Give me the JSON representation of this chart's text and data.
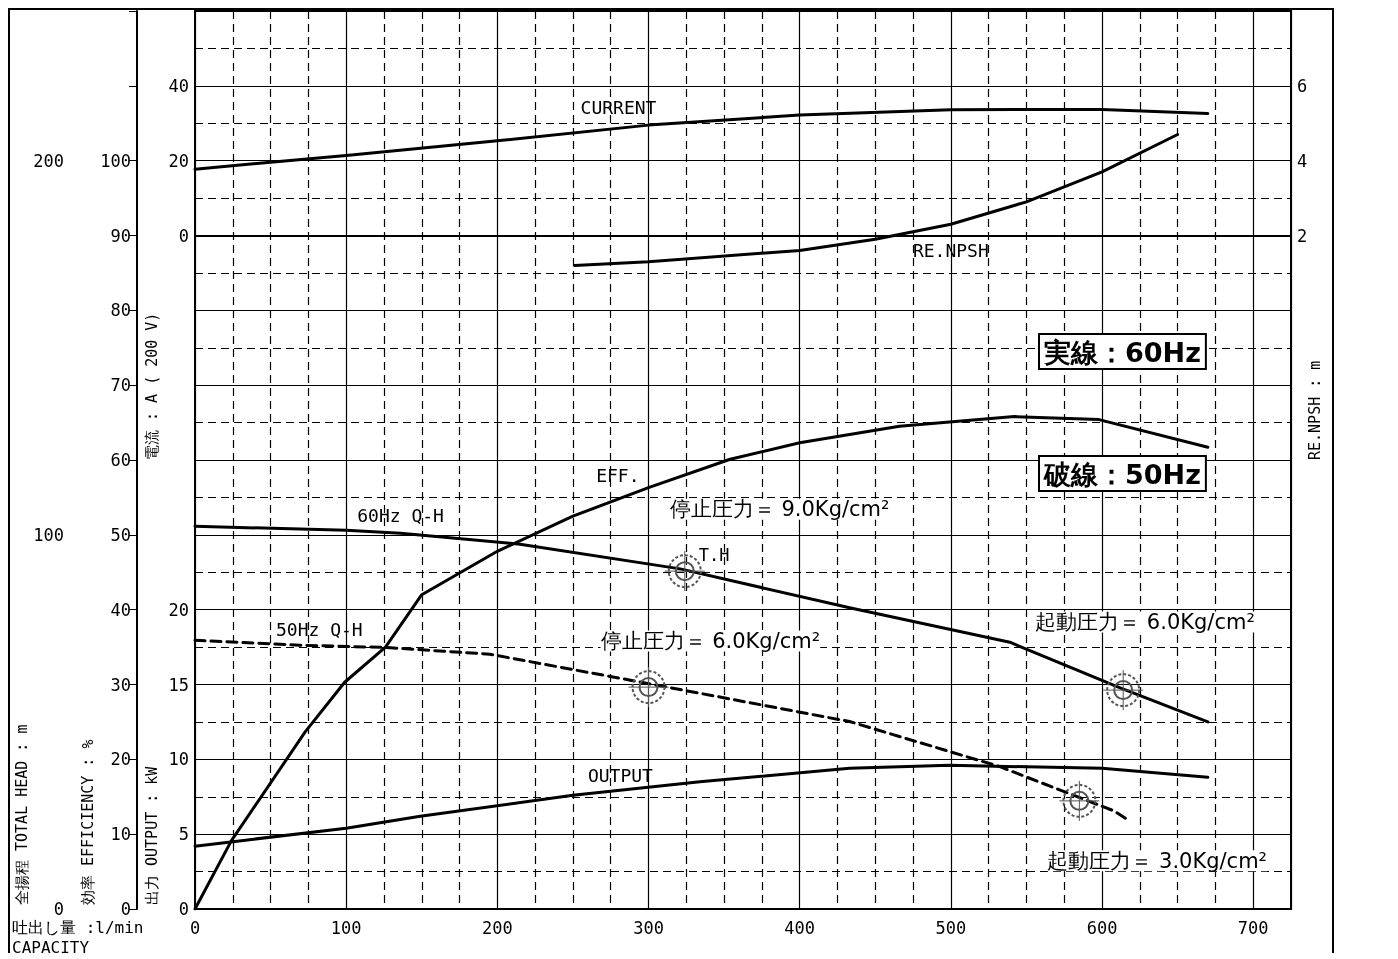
{
  "chart_data": [
    {
      "type": "line",
      "xlabel": "吐出し量 :l/min\nCAPACITY",
      "ylabel": "全揚程 TOTAL HEAD : m",
      "y2label": "効率 EFFICIENCY : %",
      "y3label": "出力 OUTPUT : kW",
      "xlim": [
        0,
        725
      ],
      "xticks": [
        0,
        100,
        200,
        300,
        400,
        500,
        600,
        700
      ],
      "ylim": [
        0,
        240
      ],
      "yticks": [
        0,
        100,
        200
      ],
      "y2lim": [
        0,
        120
      ],
      "y2ticks": [
        0,
        10,
        20,
        30,
        40,
        50,
        60,
        70,
        80,
        90,
        100
      ],
      "y3lim": [
        0,
        60
      ],
      "y3ticks": [
        0,
        5,
        10,
        15,
        20
      ],
      "grid": true,
      "marker": "none",
      "series": [
        {
          "name": "60Hz Q-H",
          "color": "#000000",
          "x": [
            0,
            100,
            136,
            215,
            321,
            433,
            539,
            612,
            670
          ],
          "values": [
            102.3,
            101.2,
            100.4,
            97.5,
            90.9,
            80.5,
            71.3,
            59.1,
            50
          ]
        },
        {
          "name": "50Hz Q-H",
          "color": "#000000",
          "line_style": "dashed",
          "x": [
            0,
            69,
            126,
            195,
            294,
            433,
            532,
            608,
            618
          ],
          "values": [
            71.8,
            70.5,
            69.9,
            68.1,
            60.7,
            50.1,
            38.1,
            26.2,
            23.6
          ]
        },
        {
          "name": "EFF.",
          "color": "#000000",
          "axis": "y2",
          "x": [
            0,
            24,
            73,
            99,
            126,
            150,
            200,
            250,
            300,
            354,
            400,
            466,
            542,
            598,
            670
          ],
          "values": [
            0,
            9.1,
            23.7,
            30.3,
            35,
            42,
            47.8,
            52.5,
            56.3,
            60.1,
            62.3,
            64.5,
            65.8,
            65.4,
            61.7
          ]
        },
        {
          "name": "OUTPUT",
          "color": "#000000",
          "axis": "y3",
          "x": [
            0,
            100,
            149,
            250,
            334,
            433,
            499,
            550,
            600,
            670
          ],
          "values": [
            4.2,
            5.4,
            6.2,
            7.6,
            8.5,
            9.4,
            9.6,
            9.5,
            9.4,
            8.8
          ]
        }
      ],
      "annotations": [
        "実線：60Hz",
        "破線：50Hz",
        {
          "text": "停止圧力＝ 9.0Kg/cm²",
          "x": 324,
          "y": 90.3
        },
        {
          "text": "T.H",
          "x": 324,
          "y": 90.3
        },
        {
          "text": "停止圧力＝ 6.0Kg/cm²",
          "x": 300,
          "y": 59.3
        },
        {
          "text": "起動圧力＝ 6.0Kg/cm²",
          "x": 614,
          "y": 58.5
        },
        {
          "text": "起動圧力＝ 3.0Kg/cm²",
          "x": 585,
          "y": 28.9
        }
      ]
    },
    {
      "type": "line",
      "ylabel": "電流 : A ( 200 V)",
      "y2label": "RE.NPSH : m",
      "xlim": [
        0,
        725
      ],
      "xticks": [
        0,
        100,
        200,
        300,
        400,
        500,
        600,
        700
      ],
      "ylim": [
        -180,
        60
      ],
      "yticks": [
        0,
        20,
        40
      ],
      "y2lim": [
        -16,
        8
      ],
      "y2ticks": [
        2,
        4,
        6
      ],
      "tick_labels": "y",
      "marker": "none",
      "series": [
        {
          "name": "CURRENT",
          "color": "#000000",
          "x": [
            0,
            50,
            100,
            200,
            300,
            400,
            500,
            600,
            670
          ],
          "values": [
            17.7,
            19.6,
            21.4,
            25.3,
            29.5,
            32.2,
            33.6,
            33.7,
            32.6
          ]
        },
        {
          "name": "RE.NPSH",
          "color": "#000000",
          "axis": "y2",
          "x": [
            251,
            300,
            400,
            450,
            500,
            550,
            600,
            650
          ],
          "values": [
            1.2,
            1.3,
            1.6,
            1.9,
            2.3,
            2.9,
            3.7,
            4.7
          ]
        }
      ]
    }
  ]
}
